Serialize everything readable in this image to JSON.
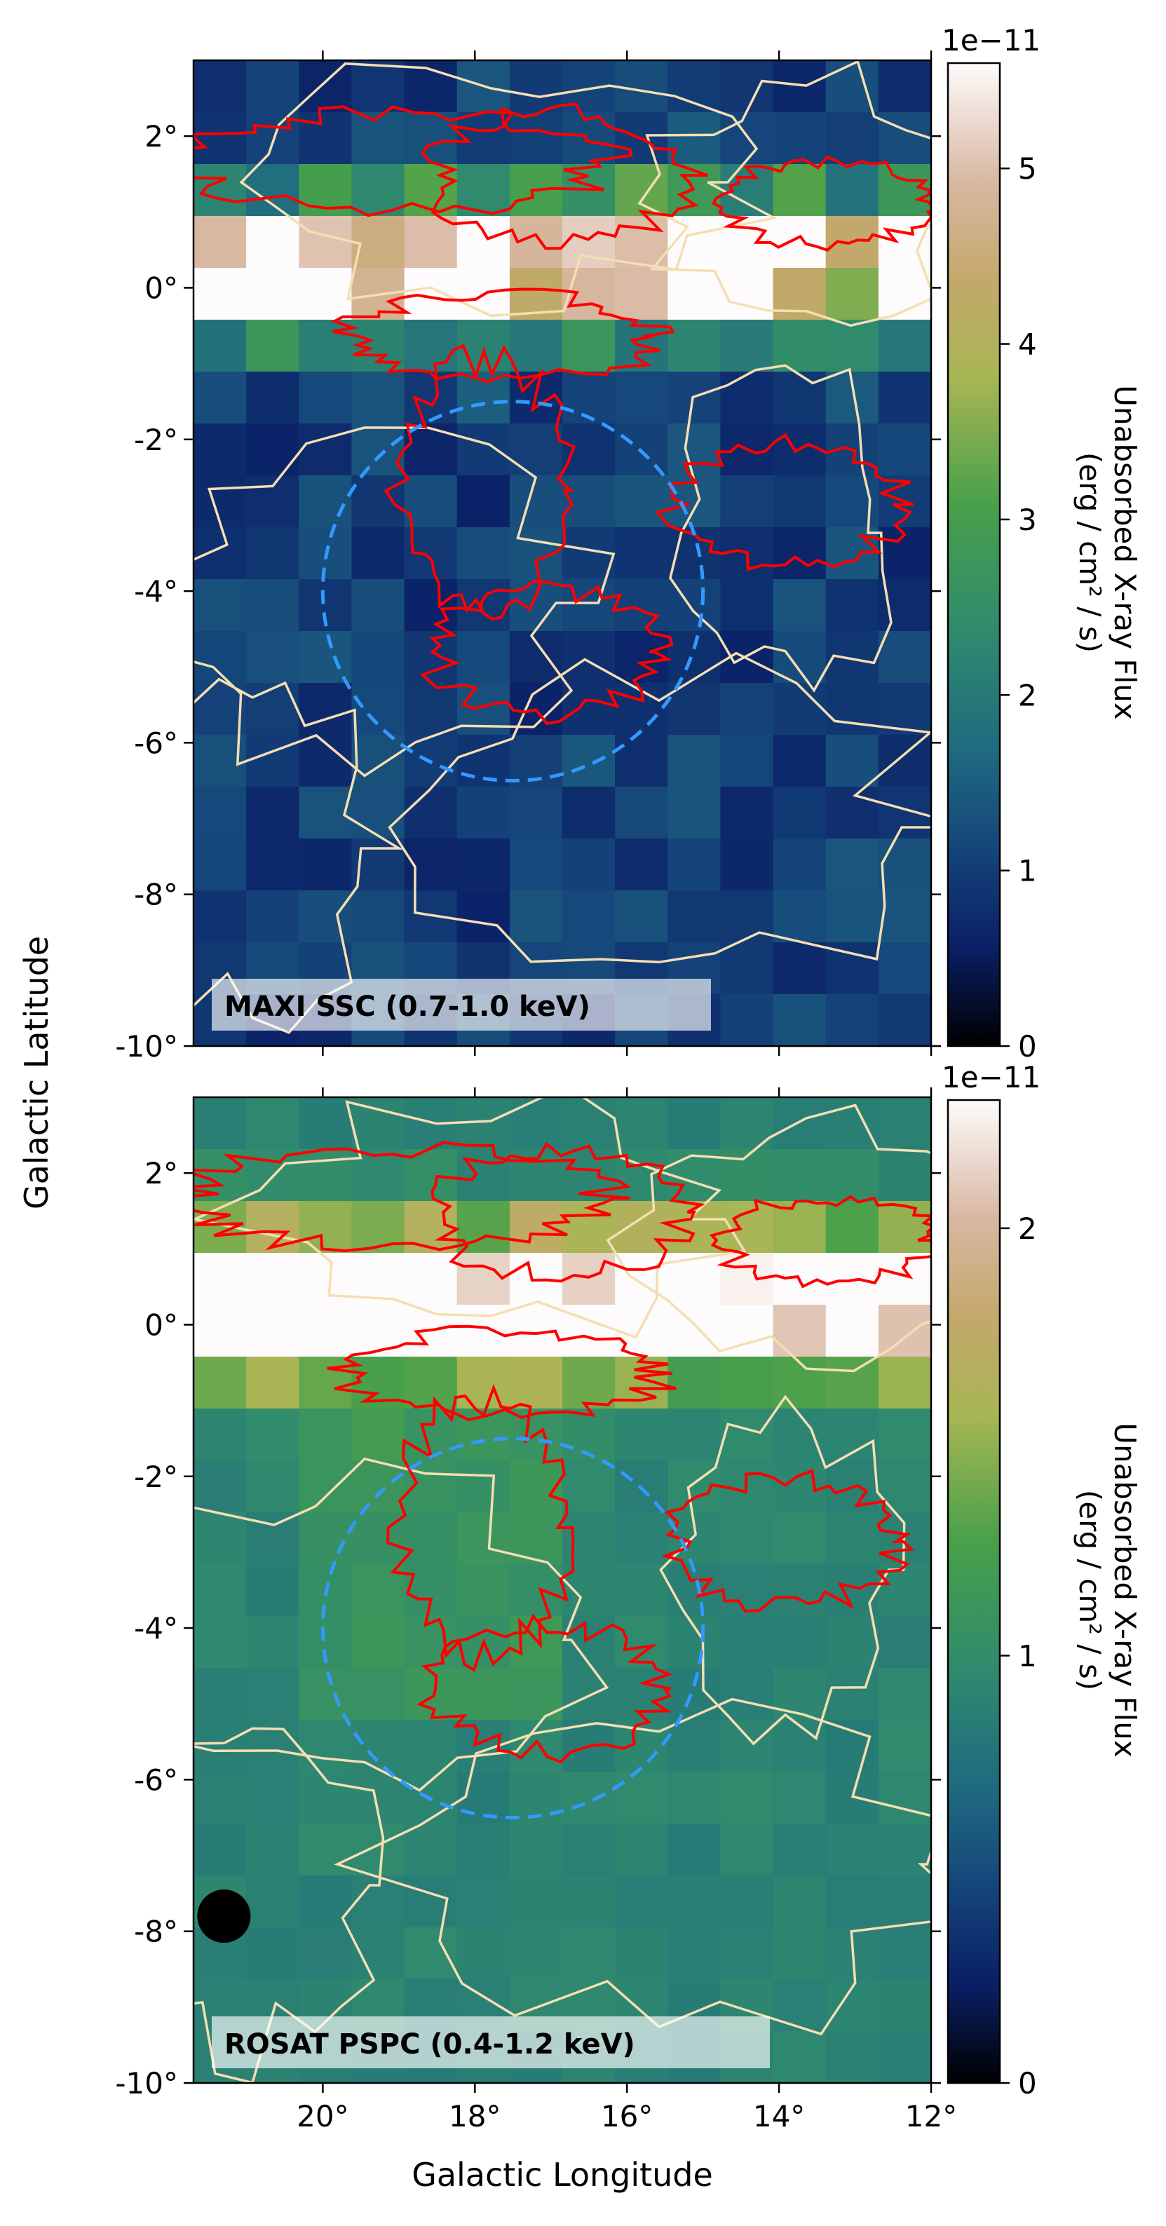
{
  "shared": {
    "xlabel": "Galactic Longitude",
    "ylabel": "Galactic Latitude",
    "x_ticks": [
      "20°",
      "18°",
      "16°",
      "14°",
      "12°"
    ],
    "y_ticks": [
      "2°",
      "0°",
      "-2°",
      "-4°",
      "-6°",
      "-8°",
      "-10°"
    ],
    "colorbar_label_line1": "Unabsorbed X-ray Flux",
    "colorbar_label_line2": "(erg / cm² / s)",
    "colormap": "gist_earth",
    "contour_colors": {
      "hi_resolution": "#ff0000",
      "low_resolution": "#f5deb3",
      "circle": "#3399ff"
    }
  },
  "chart_data": [
    {
      "type": "heatmap",
      "title": "MAXI SSC (0.7-1.0 keV)",
      "xlabel": "",
      "ylabel": "Galactic Latitude",
      "xlim": [
        21.7,
        12.0
      ],
      "ylim": [
        -10,
        3
      ],
      "x_tick_values": [
        20,
        18,
        16,
        14,
        12
      ],
      "y_tick_values": [
        2,
        0,
        -2,
        -4,
        -6,
        -8,
        -10
      ],
      "colorbar": {
        "min": 0,
        "max": 5.6,
        "ticks": [
          0,
          1,
          2,
          3,
          4,
          5
        ],
        "offset_label": "1e−11"
      },
      "circle": {
        "center_l": 17.5,
        "center_b": -4.0,
        "radius_deg": 2.5,
        "style": "dashed"
      },
      "grid": false,
      "annotation_position": "bottom-left"
    },
    {
      "type": "heatmap",
      "title": "ROSAT PSPC (0.4-1.2 keV)",
      "xlabel": "Galactic Longitude",
      "ylabel": "Galactic Latitude",
      "xlim": [
        21.7,
        12.0
      ],
      "ylim": [
        -10,
        3
      ],
      "x_tick_values": [
        20,
        18,
        16,
        14,
        12
      ],
      "y_tick_values": [
        2,
        0,
        -2,
        -4,
        -6,
        -8,
        -10
      ],
      "colorbar": {
        "min": 0,
        "max": 2.3,
        "ticks": [
          0,
          1,
          2
        ],
        "offset_label": "1e−11"
      },
      "circle": {
        "center_l": 17.5,
        "center_b": -4.0,
        "radius_deg": 2.5,
        "style": "dashed"
      },
      "grid": false,
      "annotation_position": "bottom-left"
    }
  ]
}
